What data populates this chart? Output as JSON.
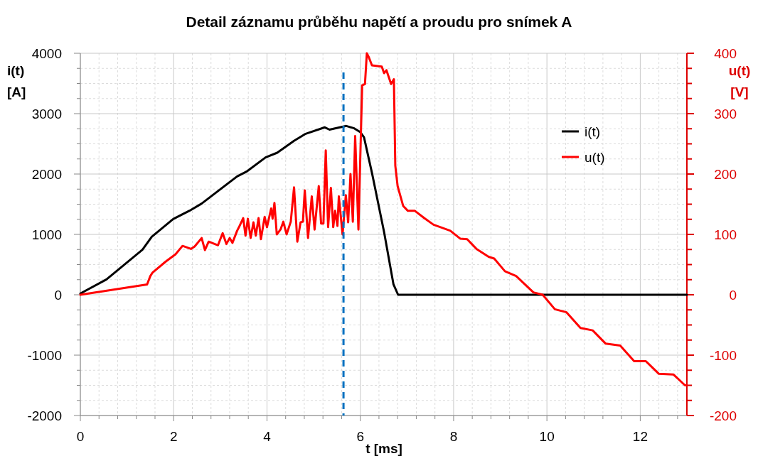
{
  "chart_data": {
    "type": "line",
    "title": "Detail záznamu průběhu napětí a proudu pro snímek A",
    "xlabel": "t [ms]",
    "ylabel": "i(t) [A]",
    "y2label": "u(t) [V]",
    "xlim": [
      0,
      13
    ],
    "xticks": [
      0,
      {
        "value": 0.4,
        "label": null
      },
      {
        "value": 0.8,
        "label": null
      },
      {
        "value": 1.2,
        "label": null
      },
      {
        "value": 1.6,
        "label": null
      },
      2,
      {
        "value": 2.4,
        "label": null
      },
      {
        "value": 2.8,
        "label": null
      },
      {
        "value": 3.2,
        "label": null
      },
      {
        "value": 3.6,
        "label": null
      },
      4,
      {
        "value": 4.4,
        "label": null
      },
      {
        "value": 4.8,
        "label": null
      },
      {
        "value": 5.2,
        "label": null
      },
      {
        "value": 5.6,
        "label": null
      },
      6,
      {
        "value": 6.4,
        "label": null
      },
      {
        "value": 6.8,
        "label": null
      },
      {
        "value": 7.2,
        "label": null
      },
      {
        "value": 7.6,
        "label": null
      },
      8,
      {
        "value": 8.4,
        "label": null
      },
      {
        "value": 8.8,
        "label": null
      },
      {
        "value": 9.2,
        "label": null
      },
      {
        "value": 9.6,
        "label": null
      },
      10,
      {
        "value": 10.4,
        "label": null
      },
      {
        "value": 10.8,
        "label": null
      },
      {
        "value": 11.2,
        "label": null
      },
      {
        "value": 11.6,
        "label": null
      },
      12,
      {
        "value": 12.4,
        "label": null
      },
      {
        "value": 12.8,
        "label": null
      }
    ],
    "ylim": [
      -2000,
      4000
    ],
    "yticks": [
      -2000,
      {
        "value": -1750,
        "label": null
      },
      {
        "value": -1500,
        "label": null
      },
      {
        "value": -1250,
        "label": null
      },
      -1000,
      {
        "value": -750,
        "label": null
      },
      {
        "value": -500,
        "label": null
      },
      {
        "value": -250,
        "label": null
      },
      0,
      {
        "value": 250,
        "label": null
      },
      {
        "value": 500,
        "label": null
      },
      {
        "value": 750,
        "label": null
      },
      1000,
      {
        "value": 1250,
        "label": null
      },
      {
        "value": 1500,
        "label": null
      },
      {
        "value": 1750,
        "label": null
      },
      2000,
      {
        "value": 2250,
        "label": null
      },
      {
        "value": 2500,
        "label": null
      },
      {
        "value": 2750,
        "label": null
      },
      3000,
      {
        "value": 3250,
        "label": null
      },
      {
        "value": 3500,
        "label": null
      },
      {
        "value": 3750,
        "label": null
      },
      4000
    ],
    "y2lim": [
      -200,
      400
    ],
    "y2ticks": [
      -200,
      {
        "value": -175,
        "label": null
      },
      {
        "value": -150,
        "label": null
      },
      {
        "value": -125,
        "label": null
      },
      -100,
      {
        "value": -75,
        "label": null
      },
      {
        "value": -50,
        "label": null
      },
      {
        "value": -25,
        "label": null
      },
      0,
      {
        "value": 25,
        "label": null
      },
      {
        "value": 50,
        "label": null
      },
      {
        "value": 75,
        "label": null
      },
      100,
      {
        "value": 125,
        "label": null
      },
      {
        "value": 150,
        "label": null
      },
      {
        "value": 175,
        "label": null
      },
      200,
      {
        "value": 225,
        "label": null
      },
      {
        "value": 250,
        "label": null
      },
      {
        "value": 275,
        "label": null
      },
      300,
      {
        "value": 325,
        "label": null
      },
      {
        "value": 350,
        "label": null
      },
      {
        "value": 375,
        "label": null
      },
      400
    ],
    "grid": true,
    "legend": "top right",
    "ref_lines": [
      {
        "axis": "x",
        "value": 5.64,
        "color": "#0070c0",
        "line_style": "dashed"
      }
    ],
    "series": [
      {
        "name": "i(t)",
        "color": "#000000",
        "x": [
          0,
          0.56,
          1.33,
          1.53,
          1.99,
          2.34,
          2.6,
          3.36,
          3.56,
          3.97,
          4.22,
          4.58,
          4.83,
          5.24,
          5.34,
          5.7,
          5.87,
          6.0,
          6.08,
          6.25,
          6.51,
          6.71,
          6.81,
          13
        ],
        "values": [
          20,
          255,
          745,
          961,
          1255,
          1392,
          1510,
          1961,
          2039,
          2275,
          2353,
          2549,
          2667,
          2773,
          2735,
          2796,
          2757,
          2694,
          2608,
          2020,
          1039,
          176,
          0,
          0
        ]
      },
      {
        "name": "u(t)",
        "color": "#ff0000",
        "axis": "y2",
        "x": [
          0,
          1.43,
          1.5,
          1.55,
          1.83,
          2.04,
          2.19,
          2.37,
          2.45,
          2.6,
          2.67,
          2.75,
          2.95,
          3.05,
          3.13,
          3.2,
          3.26,
          3.36,
          3.4,
          3.49,
          3.54,
          3.59,
          3.65,
          3.71,
          3.76,
          3.82,
          3.87,
          3.95,
          4.0,
          4.09,
          4.12,
          4.16,
          4.21,
          4.29,
          4.35,
          4.42,
          4.51,
          4.58,
          4.65,
          4.72,
          4.77,
          4.81,
          4.88,
          4.96,
          5.02,
          5.11,
          5.16,
          5.21,
          5.26,
          5.31,
          5.37,
          5.42,
          5.46,
          5.51,
          5.54,
          5.62,
          5.69,
          5.74,
          5.79,
          5.84,
          5.89,
          5.96,
          6.04,
          6.1,
          6.14,
          6.18,
          6.25,
          6.46,
          6.51,
          6.56,
          6.66,
          6.72,
          6.75,
          6.8,
          6.92,
          7.02,
          7.17,
          7.37,
          7.57,
          7.72,
          7.93,
          8.14,
          8.29,
          8.49,
          8.75,
          8.87,
          9.1,
          9.34,
          9.71,
          9.91,
          10.17,
          10.42,
          10.72,
          10.98,
          11.26,
          11.57,
          11.87,
          12.12,
          12.4,
          12.71,
          12.96,
          13
        ],
        "values": [
          0,
          17,
          31,
          37,
          55,
          67,
          81,
          76,
          80,
          94,
          74,
          88,
          82,
          102,
          84,
          94,
          86,
          106,
          112,
          127,
          98,
          126,
          94,
          120,
          98,
          127,
          92,
          129,
          112,
          143,
          126,
          152,
          100,
          108,
          121,
          100,
          121,
          178,
          88,
          120,
          121,
          173,
          94,
          163,
          108,
          180,
          118,
          118,
          239,
          112,
          177,
          112,
          139,
          114,
          163,
          100,
          165,
          120,
          200,
          121,
          263,
          108,
          347,
          349,
          400,
          394,
          380,
          378,
          367,
          372,
          349,
          357,
          214,
          180,
          147,
          139,
          139,
          127,
          116,
          112,
          106,
          93,
          92,
          76,
          63,
          60,
          39,
          31,
          4,
          0,
          -24,
          -29,
          -55,
          -59,
          -81,
          -84,
          -110,
          -110,
          -131,
          -132,
          -150,
          -150
        ]
      }
    ]
  }
}
